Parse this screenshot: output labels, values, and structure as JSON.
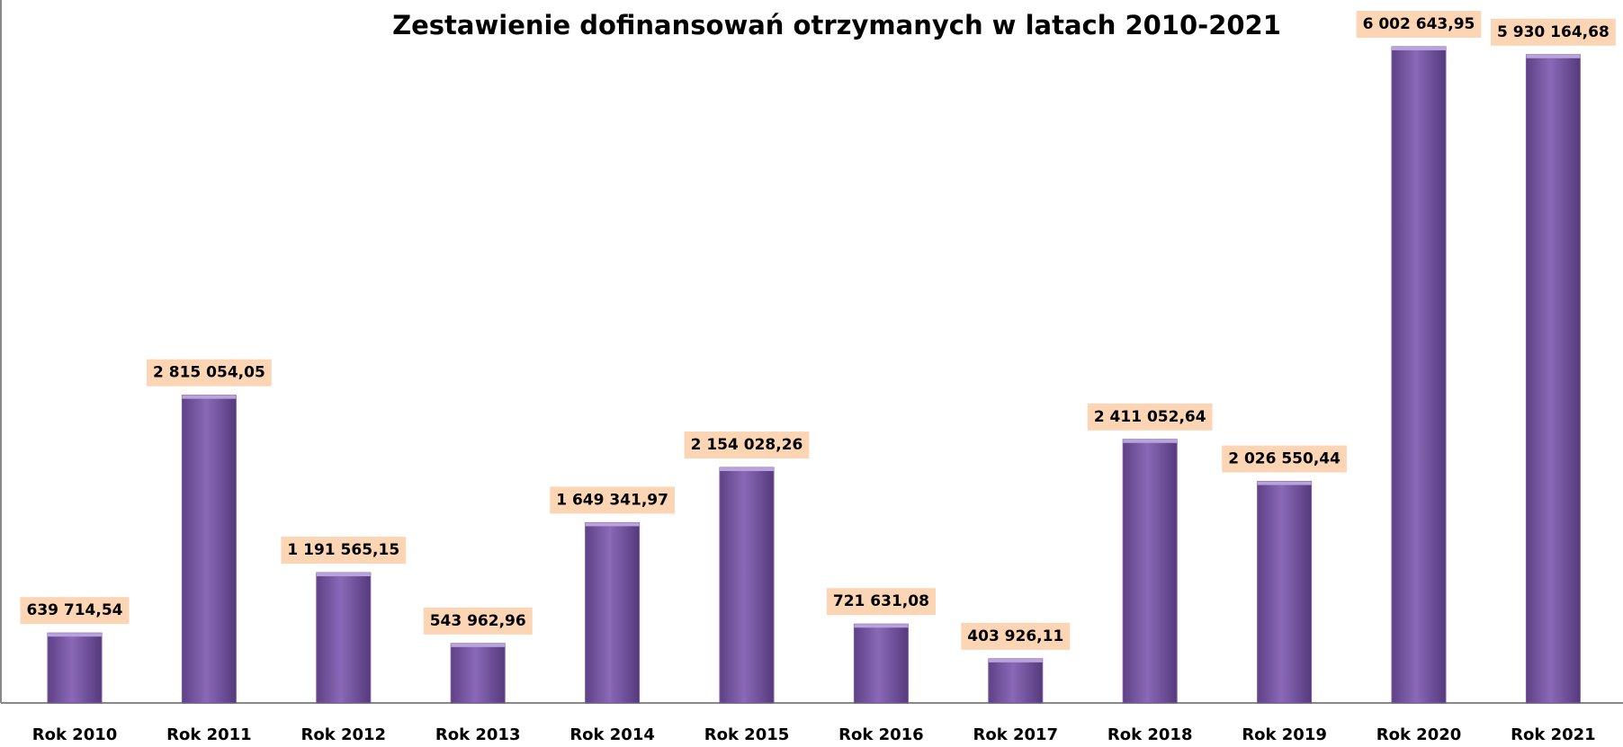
{
  "chart_data": {
    "type": "bar",
    "title": "Zestawienie dofinansowań otrzymanych w latach  2010-2021",
    "categories": [
      "Rok 2010",
      "Rok 2011",
      "Rok 2012",
      "Rok 2013",
      "Rok 2014",
      "Rok 2015",
      "Rok 2016",
      "Rok 2017",
      "Rok 2018",
      "Rok 2019",
      "Rok 2020",
      "Rok 2021"
    ],
    "values": [
      639714.54,
      2815054.05,
      1191565.15,
      543962.96,
      1649341.97,
      2154028.26,
      721631.08,
      403926.11,
      2411052.64,
      2026550.44,
      6002643.95,
      5930164.68
    ],
    "value_labels": [
      "639 714,54",
      "2 815 054,05",
      "1 191 565,15",
      "543 962,96",
      "1 649 341,97",
      "2 154 028,26",
      "721 631,08",
      "403 926,11",
      "2 411 052,64",
      "2 026 550,44",
      "6 002 643,95",
      "5 930 164,68"
    ],
    "color": "#7b5aa6",
    "label_box_color": "#fcd5b4",
    "ylim": [
      0,
      6430000
    ]
  }
}
